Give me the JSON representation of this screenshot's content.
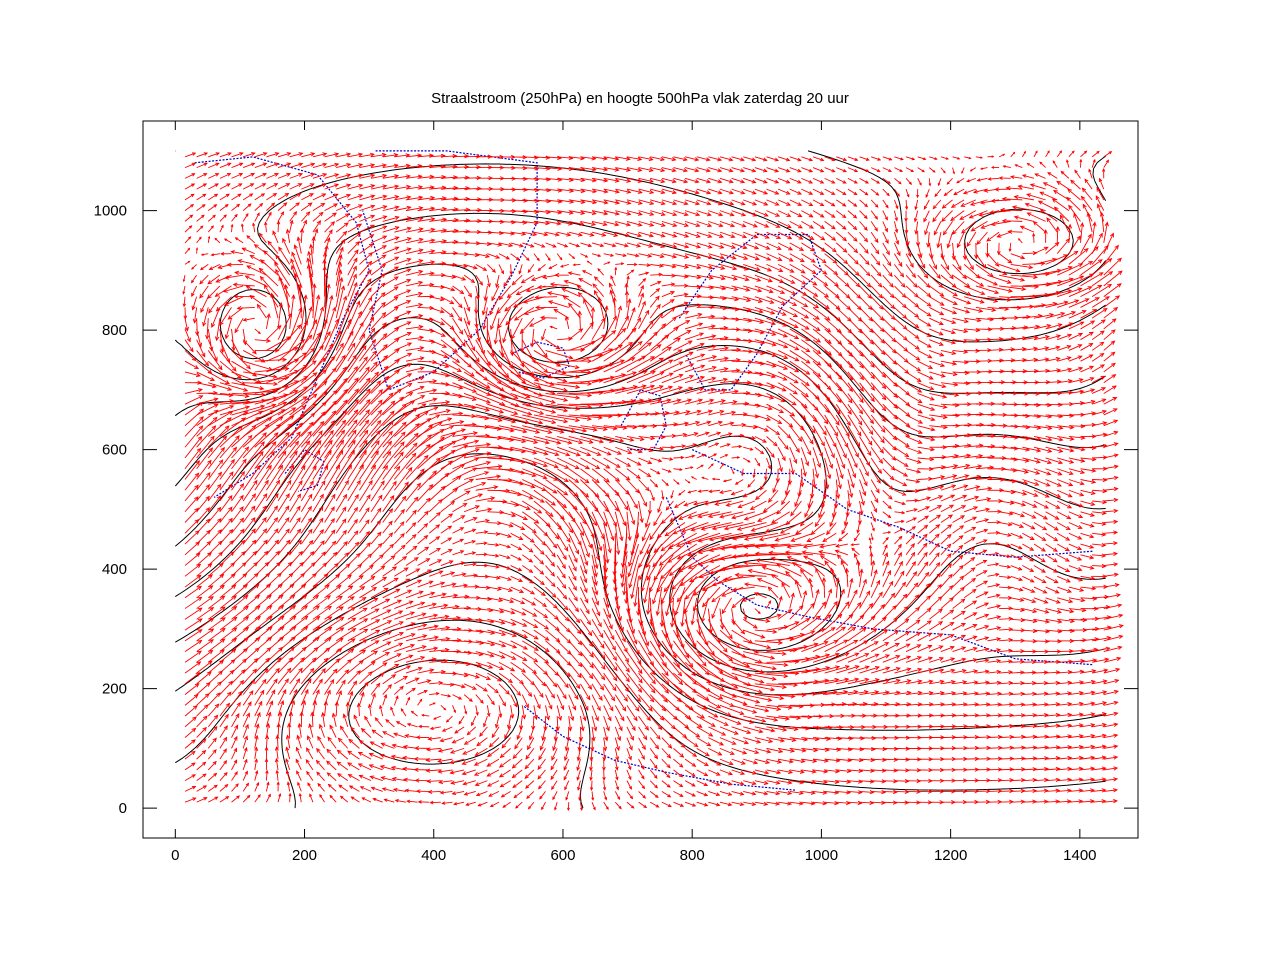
{
  "chart_data": {
    "type": "scatter",
    "title": "Straalstroom (250hPa) en hoogte 500hPa vlak zaterdag 20 uur",
    "xlabel": "",
    "ylabel": "",
    "xlim": [
      -50,
      1490
    ],
    "ylim": [
      -50,
      1150
    ],
    "x_ticks": [
      0,
      200,
      400,
      600,
      800,
      1000,
      1200,
      1400
    ],
    "y_ticks": [
      0,
      200,
      400,
      600,
      800,
      1000
    ],
    "grid": false,
    "legend": "none",
    "colors": {
      "wind_vectors": "#ff0000",
      "height_contours": "#000000",
      "coastlines": "#0000cc",
      "frame": "#000000"
    },
    "series": [
      {
        "kind": "wind-vector-field",
        "description": "250hPa wind vectors on a regular grid",
        "x_range": [
          15,
          1440
        ],
        "y_range": [
          10,
          1100
        ],
        "grid_step": 18
      },
      {
        "kind": "contour",
        "description": "500hPa geopotential height contours"
      },
      {
        "kind": "coastline",
        "description": "continental and island coastlines"
      }
    ]
  }
}
